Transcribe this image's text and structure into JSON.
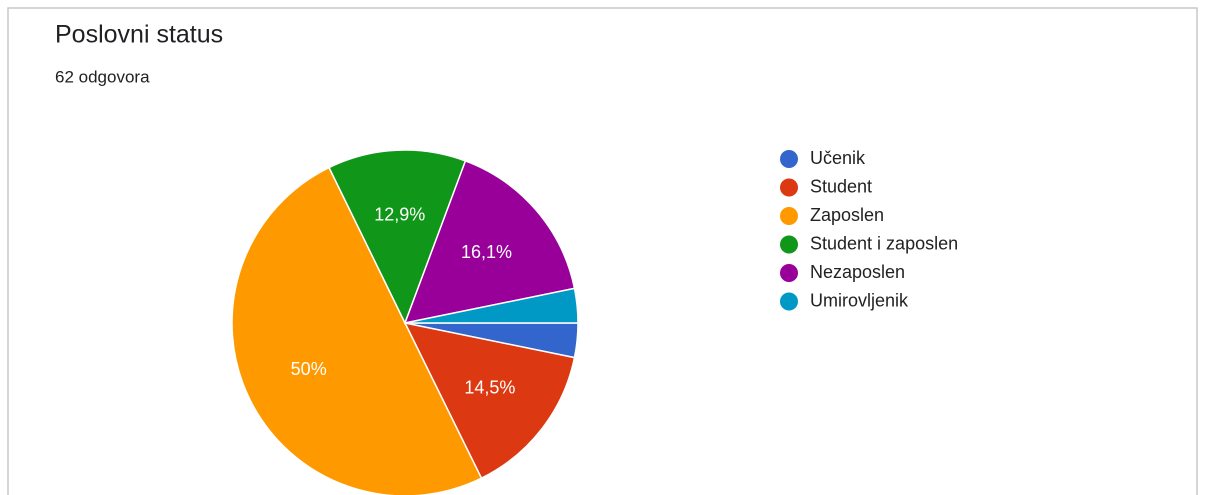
{
  "chart_data": {
    "type": "pie",
    "title": "Poslovni status",
    "subtitle": "62 odgovora",
    "categories": [
      "Učenik",
      "Student",
      "Zaposlen",
      "Student i zaposlen",
      "Nezaposlen",
      "Umirovljenik"
    ],
    "values": [
      3.2,
      14.5,
      50,
      12.9,
      16.1,
      3.2
    ],
    "value_labels": [
      null,
      "14,5%",
      "50%",
      "12,9%",
      "16,1%",
      null
    ],
    "colors": [
      "#3366cc",
      "#dc3912",
      "#ff9900",
      "#109618",
      "#990099",
      "#0099c6"
    ],
    "legend": "right"
  }
}
